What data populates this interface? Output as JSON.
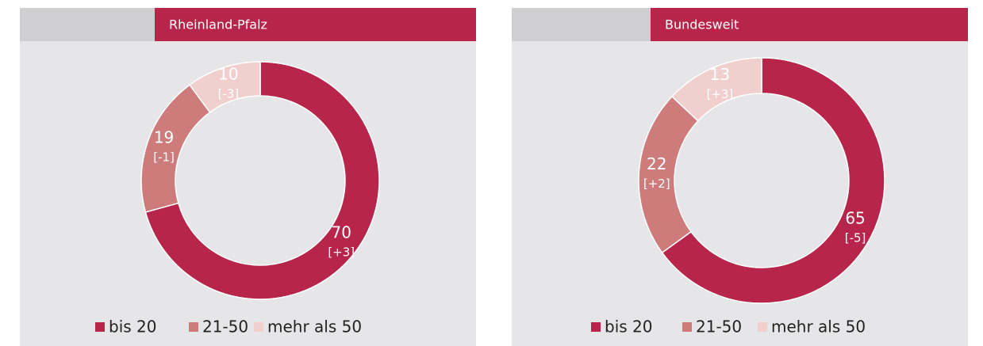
{
  "chart_data": [
    {
      "type": "donut",
      "title": "Rheinland-Pfalz",
      "categories": [
        "bis 20",
        "21-50",
        "mehr als 50"
      ],
      "values": [
        70,
        19,
        10
      ],
      "change_labels": [
        "[+3]",
        "[-1]",
        "[-3]"
      ],
      "colors": [
        "#b8254b",
        "#cd7b7b",
        "#f0cfcd"
      ]
    },
    {
      "type": "donut",
      "title": "Bundesweit",
      "categories": [
        "bis 20",
        "21-50",
        "mehr als 50"
      ],
      "values": [
        65,
        22,
        13
      ],
      "change_labels": [
        "[-5]",
        "[+2]",
        "[+3]"
      ],
      "colors": [
        "#b8254b",
        "#cd7b7b",
        "#f0cfcd"
      ]
    }
  ]
}
